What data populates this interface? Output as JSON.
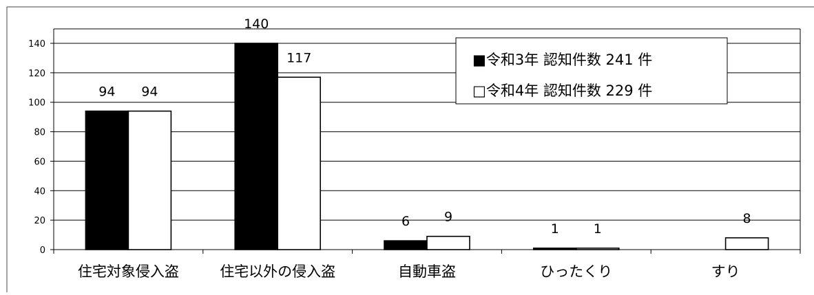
{
  "chart_data": {
    "type": "bar",
    "categories": [
      "住宅対象侵入盗",
      "住宅以外の侵入盗",
      "自動車盗",
      "ひったくり",
      "すり"
    ],
    "series": [
      {
        "name": "■令和3年 認知件数 241 件",
        "values": [
          94,
          140,
          6,
          1,
          null
        ],
        "labels": [
          "94",
          "140",
          "6",
          "1",
          ""
        ],
        "color": "#000000"
      },
      {
        "name": "□令和4年 認知件数 229 件",
        "values": [
          94,
          117,
          9,
          1,
          8
        ],
        "labels": [
          "94",
          "117",
          "9",
          "1",
          "8"
        ],
        "color": "#ffffff"
      }
    ],
    "yticks": [
      "0",
      "20",
      "40",
      "60",
      "80",
      "100",
      "120",
      "140"
    ],
    "ylim": [
      0,
      140
    ],
    "grid": true,
    "legend_position": "top-right"
  }
}
